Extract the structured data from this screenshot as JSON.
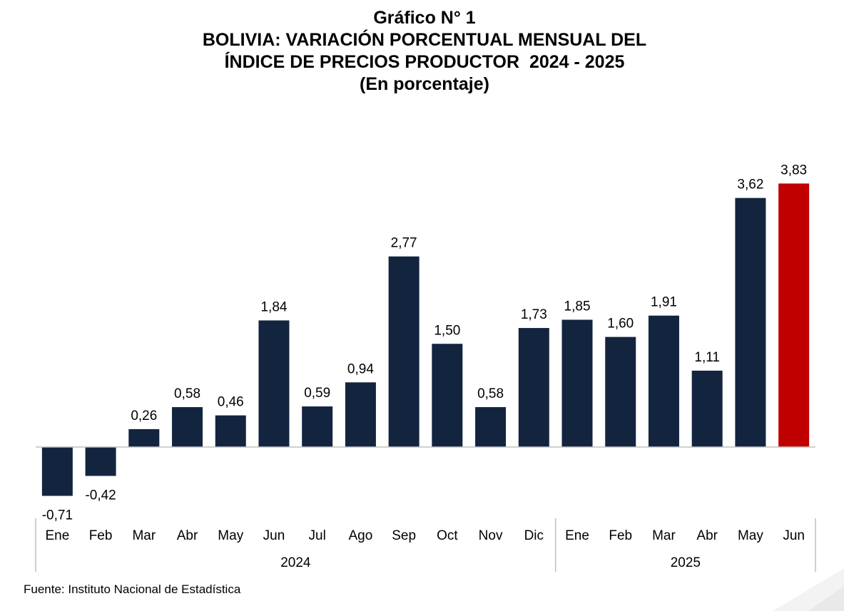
{
  "title_lines": [
    "Gráfico N° 1",
    "BOLIVIA: VARIACIÓN PORCENTUAL MENSUAL DEL",
    "ÍNDICE DE PRECIOS PRODUCTOR  2024 - 2025",
    "(En porcentaje)"
  ],
  "source": "Fuente: Instituto Nacional de Estadística",
  "chart_data": {
    "type": "bar",
    "title": "BOLIVIA: VARIACIÓN PORCENTUAL MENSUAL DEL ÍNDICE DE PRECIOS PRODUCTOR  2024 - 2025",
    "subtitle": "(En porcentaje)",
    "categories": [
      "Ene",
      "Feb",
      "Mar",
      "Abr",
      "May",
      "Jun",
      "Jul",
      "Ago",
      "Sep",
      "Oct",
      "Nov",
      "Dic",
      "Ene",
      "Feb",
      "Mar",
      "Abr",
      "May",
      "Jun"
    ],
    "values": [
      -0.71,
      -0.42,
      0.26,
      0.58,
      0.46,
      1.84,
      0.59,
      0.94,
      2.77,
      1.5,
      0.58,
      1.73,
      1.85,
      1.6,
      1.91,
      1.11,
      3.62,
      3.83
    ],
    "value_labels": [
      "-0,71",
      "-0,42",
      "0,26",
      "0,58",
      "0,46",
      "1,84",
      "0,59",
      "0,94",
      "2,77",
      "1,50",
      "0,58",
      "1,73",
      "1,85",
      "1,60",
      "1,91",
      "1,11",
      "3,62",
      "3,83"
    ],
    "groups": [
      {
        "label": "2024",
        "start": 0,
        "end": 11
      },
      {
        "label": "2025",
        "start": 12,
        "end": 17
      }
    ],
    "highlight_index": 17,
    "colors": {
      "bar": "#13243f",
      "highlight": "#c00000",
      "axis": "#bfbfbf"
    },
    "ylim": [
      -0.71,
      3.83
    ],
    "grid": false,
    "legend": false
  }
}
